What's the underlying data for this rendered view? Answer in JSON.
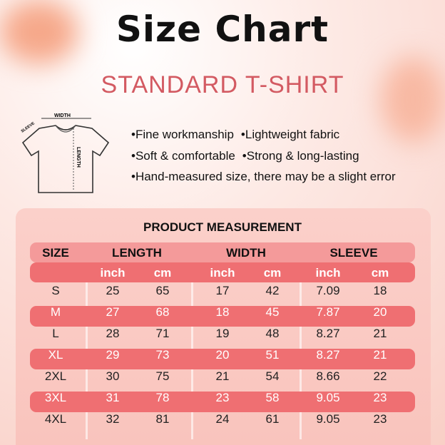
{
  "title": "Size Chart",
  "subtitle": "STANDARD T-SHIRT",
  "diagram": {
    "width": "WIDTH",
    "sleeve": "SLEEVE",
    "length": "LENGTH"
  },
  "features": [
    "•Fine workmanship",
    "•Lightweight fabric",
    "•Soft & comfortable",
    "•Strong & long-lasting",
    "•Hand-measured size, there may be a slight error"
  ],
  "table": {
    "title": "PRODUCT MEASUREMENT",
    "headers": [
      "SIZE",
      "LENGTH",
      "WIDTH",
      "SLEEVE"
    ],
    "units": [
      "inch",
      "cm",
      "inch",
      "cm",
      "inch",
      "cm"
    ],
    "rows": [
      [
        "S",
        "25",
        "65",
        "17",
        "42",
        "7.09",
        "18"
      ],
      [
        "M",
        "27",
        "68",
        "18",
        "45",
        "7.87",
        "20"
      ],
      [
        "L",
        "28",
        "71",
        "19",
        "48",
        "8.27",
        "21"
      ],
      [
        "XL",
        "29",
        "73",
        "20",
        "51",
        "8.27",
        "21"
      ],
      [
        "2XL",
        "30",
        "75",
        "21",
        "54",
        "8.66",
        "22"
      ],
      [
        "3XL",
        "31",
        "78",
        "23",
        "58",
        "9.05",
        "23"
      ],
      [
        "4XL",
        "32",
        "81",
        "24",
        "61",
        "9.05",
        "23"
      ]
    ]
  },
  "colors": {
    "accent": "#d35a62",
    "header": "#f49a9a",
    "band": "#ef6f72"
  }
}
